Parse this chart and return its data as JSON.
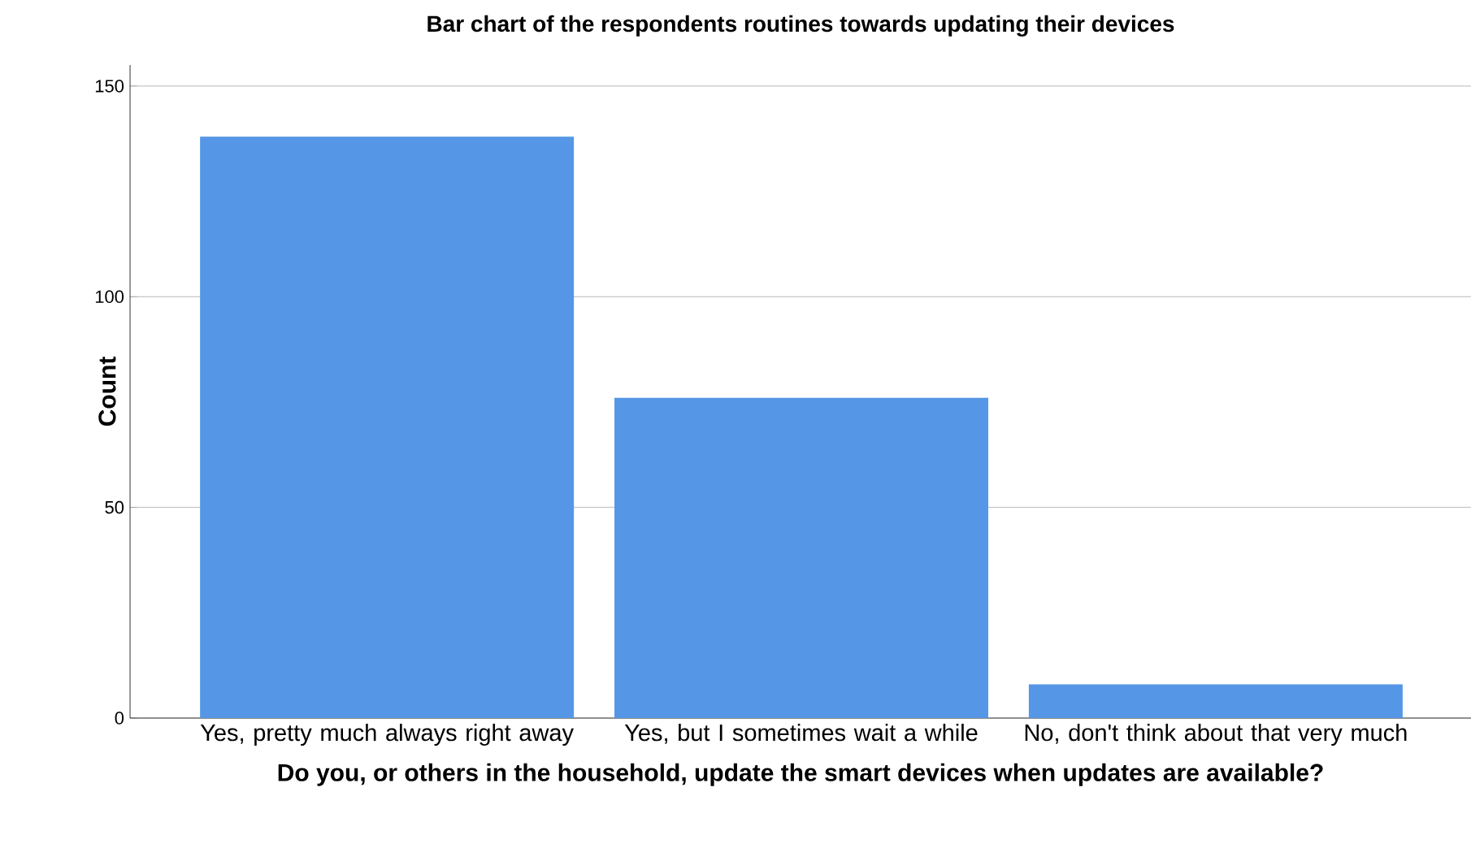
{
  "chart_data": {
    "type": "bar",
    "title": "Bar chart of the respondents routines towards updating their devices",
    "xlabel": "Do you, or others in the household, update the smart devices when updates are available?",
    "ylabel": "Count",
    "categories": [
      "Yes, pretty much always right away",
      "Yes, but I sometimes wait a while",
      "No, don't think about that very much"
    ],
    "values": [
      138,
      76,
      8
    ],
    "color": "#5597e6",
    "ylim": [
      0,
      155
    ],
    "yticks": [
      0,
      50,
      100,
      150
    ],
    "grid": "y"
  }
}
